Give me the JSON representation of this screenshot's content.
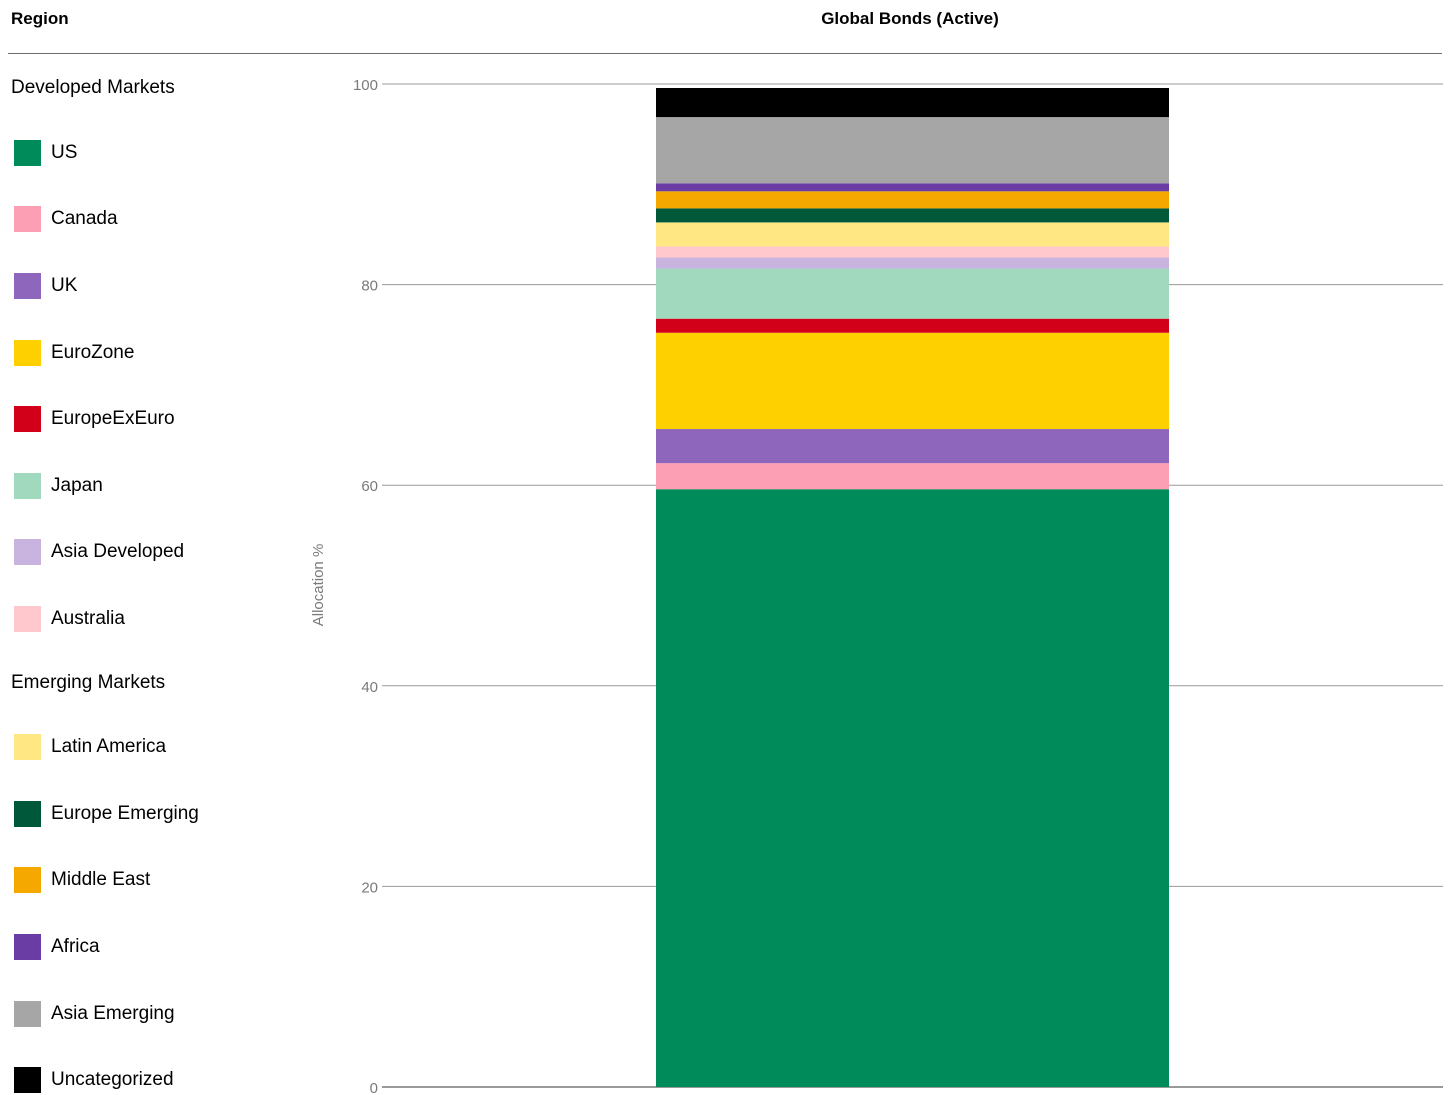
{
  "header": {
    "region_label": "Region",
    "column_label": "Global Bonds (Active)"
  },
  "legend": {
    "developed_heading": "Developed Markets",
    "emerging_heading": "Emerging Markets",
    "developed": [
      {
        "label": "US",
        "color": "#008C5A"
      },
      {
        "label": "Canada",
        "color": "#FC9EB4"
      },
      {
        "label": "UK",
        "color": "#8E66BB"
      },
      {
        "label": "EuroZone",
        "color": "#FFD000"
      },
      {
        "label": "EuropeExEuro",
        "color": "#D20019"
      },
      {
        "label": "Japan",
        "color": "#A0D9BE"
      },
      {
        "label": "Asia Developed",
        "color": "#C9B4E0"
      },
      {
        "label": "Australia",
        "color": "#FFC8CC"
      }
    ],
    "emerging": [
      {
        "label": "Latin America",
        "color": "#FFE783"
      },
      {
        "label": "Europe Emerging",
        "color": "#00583A"
      },
      {
        "label": "Middle East",
        "color": "#F5A800"
      },
      {
        "label": "Africa",
        "color": "#6A3DA4"
      },
      {
        "label": "Asia Emerging",
        "color": "#A6A6A6"
      },
      {
        "label": "Uncategorized",
        "color": "#000000"
      }
    ]
  },
  "chart_data": {
    "type": "bar",
    "stacked": true,
    "categories": [
      "Global Bonds (Active)"
    ],
    "ylabel": "Allocation %",
    "ylim": [
      0,
      100
    ],
    "yticks": [
      "0",
      "20",
      "40",
      "60",
      "80",
      "100"
    ],
    "grid": true,
    "legend_placement": "left",
    "series": [
      {
        "name": "US",
        "values": [
          59.6
        ],
        "color": "#008C5A"
      },
      {
        "name": "Canada",
        "values": [
          2.6
        ],
        "color": "#FC9EB4"
      },
      {
        "name": "UK",
        "values": [
          3.4
        ],
        "color": "#8E66BB"
      },
      {
        "name": "EuroZone",
        "values": [
          9.6
        ],
        "color": "#FFD000"
      },
      {
        "name": "EuropeExEuro",
        "values": [
          1.4
        ],
        "color": "#D20019"
      },
      {
        "name": "Japan",
        "values": [
          5.0
        ],
        "color": "#A0D9BE"
      },
      {
        "name": "Asia Developed",
        "values": [
          1.1
        ],
        "color": "#C9B4E0"
      },
      {
        "name": "Australia",
        "values": [
          1.1
        ],
        "color": "#FFC8CC"
      },
      {
        "name": "Latin America",
        "values": [
          2.4
        ],
        "color": "#FFE783"
      },
      {
        "name": "Europe Emerging",
        "values": [
          1.4
        ],
        "color": "#00583A"
      },
      {
        "name": "Middle East",
        "values": [
          1.7
        ],
        "color": "#F5A800"
      },
      {
        "name": "Africa",
        "values": [
          0.8
        ],
        "color": "#6A3DA4"
      },
      {
        "name": "Asia Emerging",
        "values": [
          6.6
        ],
        "color": "#A6A6A6"
      },
      {
        "name": "Uncategorized",
        "values": [
          2.9
        ],
        "color": "#000000"
      }
    ]
  }
}
